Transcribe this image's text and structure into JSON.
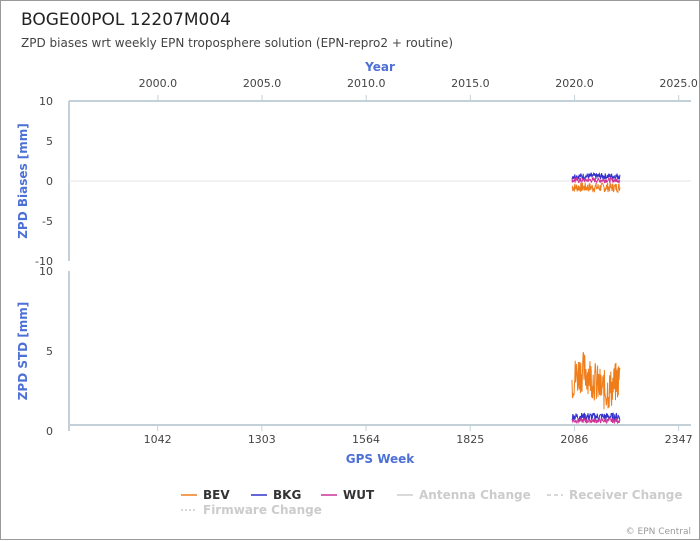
{
  "title": "BOGE00POL 12207M004",
  "subtitle": "ZPD biases wrt weekly EPN troposphere solution (EPN-repro2 + routine)",
  "credits": "© EPN Central",
  "colors": {
    "BEV": "#ef7d1a",
    "BKG": "#3333cc",
    "WUT": "#cc3399",
    "axis": "#c4d0d8",
    "axis_title": "#4d70d6"
  },
  "chart_data": [
    {
      "type": "line",
      "name": "bias-panel",
      "top_axis_title": "Year",
      "top_ticks": [
        "2000.0",
        "2005.0",
        "2010.0",
        "2015.0",
        "2020.0",
        "2025.0"
      ],
      "top_tick_values": [
        2000.0,
        2005.0,
        2010.0,
        2015.0,
        2020.0,
        2025.0
      ],
      "ylabel": "ZPD Biases [mm]",
      "ylim": [
        -10,
        10
      ],
      "y_ticks": [
        "10",
        "5",
        "0",
        "-5",
        "-10"
      ],
      "y_tick_values": [
        10,
        5,
        0,
        -5,
        -10
      ],
      "x_range_gps_week": [
        820,
        2378
      ],
      "series": [
        {
          "name": "BEV",
          "x_range": [
            2080,
            2200
          ],
          "mean": -0.8,
          "amp": 0.6
        },
        {
          "name": "BKG",
          "x_range": [
            2080,
            2200
          ],
          "mean": 0.6,
          "amp": 0.4
        },
        {
          "name": "WUT",
          "x_range": [
            2080,
            2200
          ],
          "mean": 0.1,
          "amp": 0.3
        }
      ]
    },
    {
      "type": "line",
      "name": "std-panel",
      "xlabel": "GPS Week",
      "ylabel": "ZPD STD [mm]",
      "ylim": [
        0,
        10
      ],
      "x_ticks": [
        "1042",
        "1303",
        "1564",
        "1825",
        "2086",
        "2347"
      ],
      "x_tick_values": [
        1042,
        1303,
        1564,
        1825,
        2086,
        2347
      ],
      "y_ticks": [
        "10",
        "5",
        "0"
      ],
      "y_tick_values": [
        10,
        5,
        0
      ],
      "x_range_gps_week": [
        820,
        2378
      ],
      "series": [
        {
          "name": "BEV",
          "x_range": [
            2080,
            2200
          ],
          "mean": 2.6,
          "amp": 1.3
        },
        {
          "name": "BKG",
          "x_range": [
            2080,
            2200
          ],
          "mean": 0.9,
          "amp": 0.25
        },
        {
          "name": "WUT",
          "x_range": [
            2080,
            2200
          ],
          "mean": 0.65,
          "amp": 0.15
        }
      ]
    }
  ],
  "legend": {
    "items": [
      {
        "label": "BEV",
        "color": "#ef7d1a",
        "active": true,
        "style": "solid"
      },
      {
        "label": "BKG",
        "color": "#3333cc",
        "active": true,
        "style": "solid"
      },
      {
        "label": "WUT",
        "color": "#cc3399",
        "active": true,
        "style": "solid"
      },
      {
        "label": "Antenna Change",
        "color": "#cccccc",
        "active": false,
        "style": "solid"
      },
      {
        "label": "Receiver Change",
        "color": "#cccccc",
        "active": false,
        "style": "dash"
      },
      {
        "label": "Firmware Change",
        "color": "#cccccc",
        "active": false,
        "style": "dot"
      }
    ]
  }
}
